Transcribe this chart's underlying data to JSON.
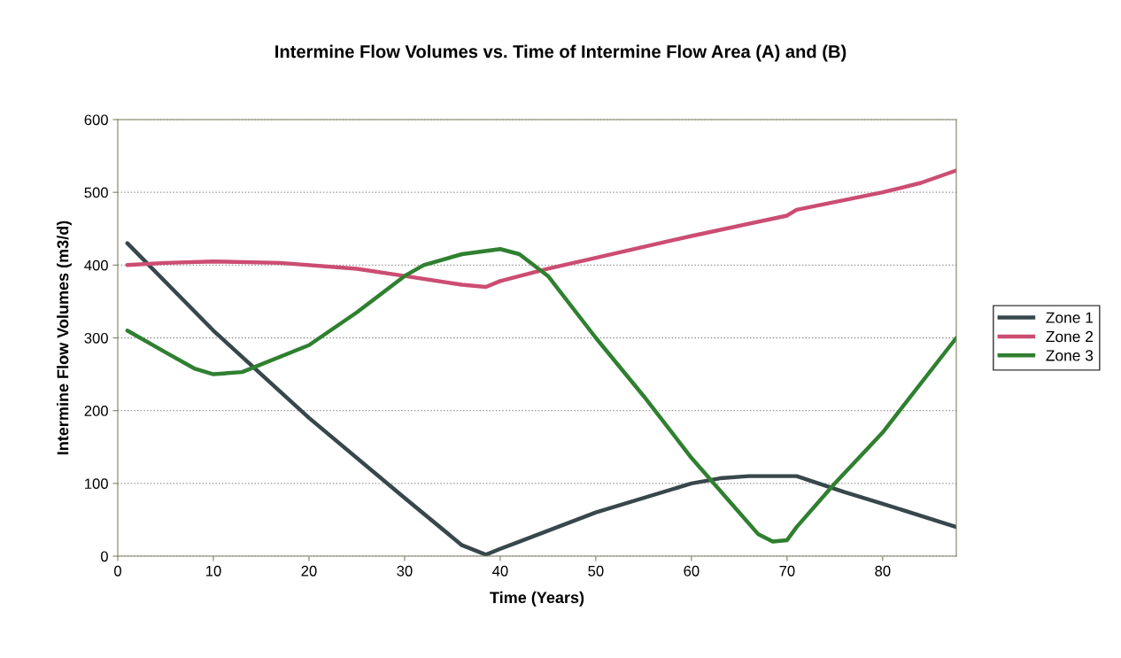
{
  "chart_data": {
    "type": "line",
    "title": "Intermine Flow Volumes vs. Time of Intermine Flow Area (A) and (B)",
    "xlabel": "Time (Years)",
    "ylabel": "Intermine Flow Volumes (m3/d)",
    "xlim": [
      0,
      87.7
    ],
    "xticks": [
      0,
      10,
      20,
      30,
      40,
      50,
      60,
      70,
      80
    ],
    "ylim": [
      0,
      600
    ],
    "yticks": [
      0,
      100,
      200,
      300,
      400,
      500,
      600
    ],
    "grid": "y",
    "legend": "right",
    "marker": "none",
    "line_style": "solid",
    "series": [
      {
        "name": "Zone 1",
        "color": "#37474b",
        "x": [
          1,
          10,
          20,
          30,
          36,
          38.5,
          40,
          42,
          50,
          60,
          63,
          66,
          70,
          71,
          76,
          80,
          87.7
        ],
        "values": [
          430,
          310,
          190,
          80,
          15,
          2,
          10,
          20,
          60,
          100,
          107,
          110,
          110,
          110,
          88,
          72,
          40
        ]
      },
      {
        "name": "Zone 2",
        "color": "#cc4d72",
        "x": [
          1,
          5,
          10,
          17,
          25,
          30,
          36,
          38.5,
          40,
          45,
          50,
          60,
          70,
          71,
          80,
          84,
          87.7
        ],
        "values": [
          400,
          403,
          405,
          403,
          395,
          385,
          373,
          370,
          378,
          395,
          410,
          440,
          468,
          476,
          500,
          513,
          530
        ]
      },
      {
        "name": "Zone 3",
        "color": "#2f8030",
        "x": [
          1,
          5,
          8,
          10,
          13,
          20,
          25,
          30,
          32,
          36,
          40,
          42,
          45,
          50,
          55,
          60,
          65,
          67,
          68.5,
          70,
          71,
          75,
          80,
          87.7
        ],
        "values": [
          310,
          280,
          258,
          250,
          253,
          290,
          335,
          385,
          400,
          415,
          422,
          415,
          385,
          300,
          220,
          135,
          60,
          30,
          20,
          22,
          40,
          100,
          170,
          300
        ]
      }
    ]
  }
}
